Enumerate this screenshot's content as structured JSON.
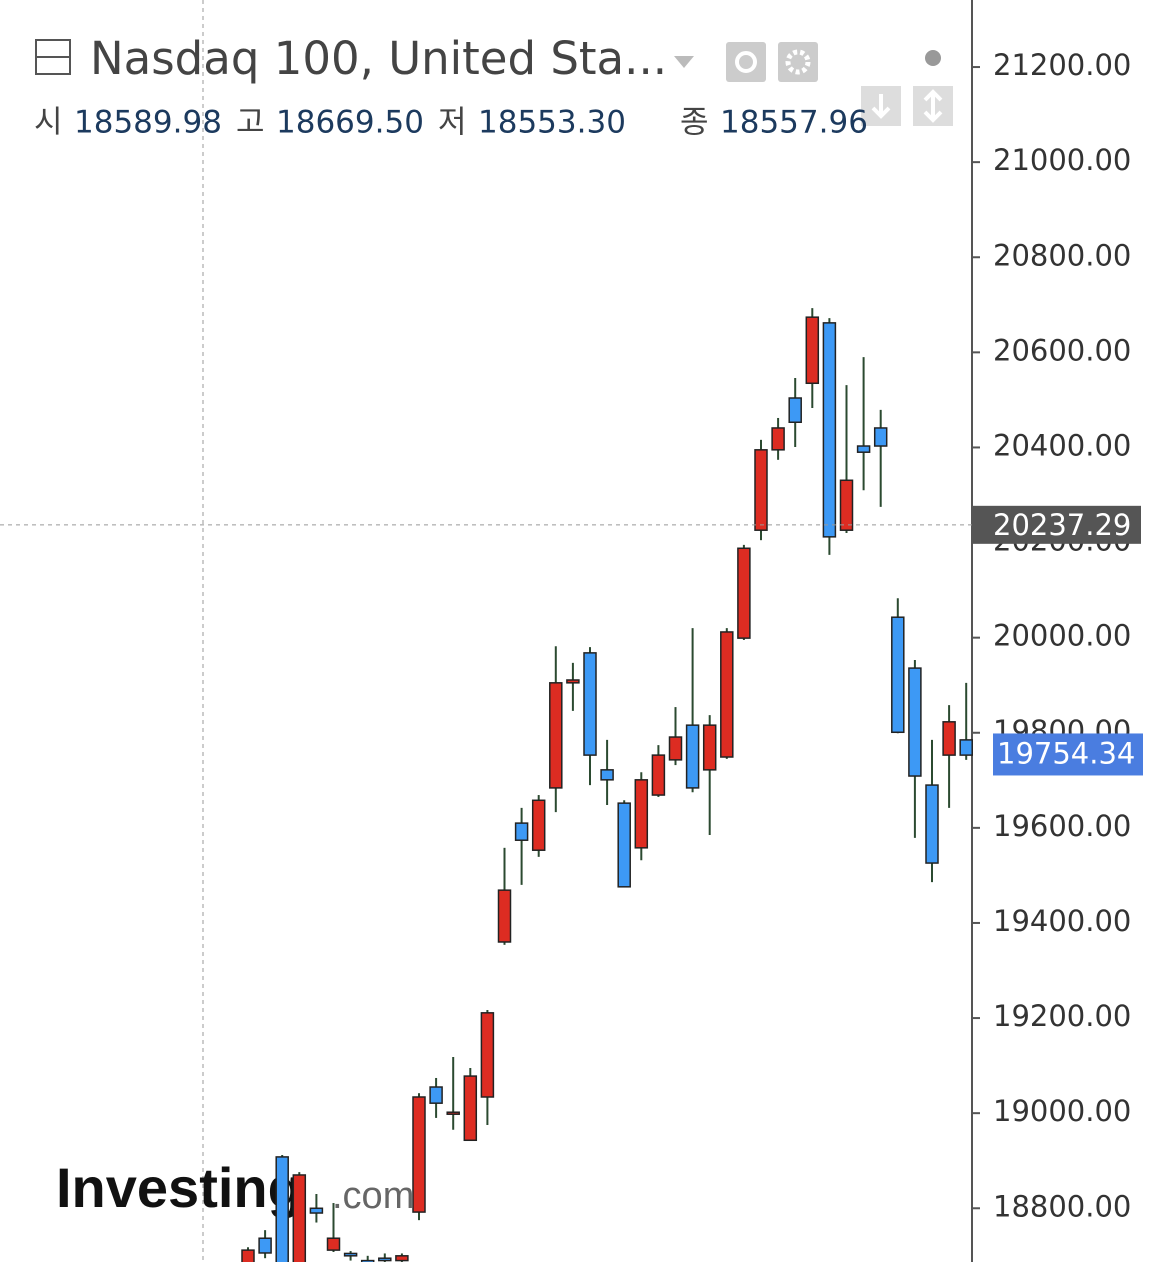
{
  "chart_data": {
    "type": "candlestick",
    "title": "Nasdaq 100, United Sta...",
    "ohlc_legend": [
      {
        "label": "시",
        "value": "18589.98"
      },
      {
        "label": "고",
        "value": "18669.50"
      },
      {
        "label": "저",
        "value": "18553.30"
      },
      {
        "label": "종",
        "value": "18557.96"
      }
    ],
    "watermark": {
      "brand": "Investing",
      "suffix": ".com"
    },
    "categories": [
      null,
      null,
      null,
      null,
      null,
      null,
      null,
      null,
      null,
      null,
      null,
      null,
      null,
      null,
      null,
      null,
      null,
      null,
      null,
      null,
      null,
      null,
      null,
      null,
      null,
      null,
      null,
      null,
      null,
      null,
      null,
      null,
      null,
      null,
      null,
      null,
      null,
      null,
      null,
      null,
      null,
      null,
      null
    ],
    "open": [
      18681,
      18737,
      18908,
      18680,
      18800,
      18712,
      18705,
      18690,
      18695,
      18690,
      18792,
      19055,
      19000,
      18943,
      19034,
      19360,
      19610,
      19553,
      19684,
      19905,
      19968,
      19722,
      19652,
      19558,
      19669,
      19743,
      19816,
      19722,
      19749,
      19999,
      20226,
      20395,
      20504,
      20535,
      20662,
      20226,
      20403,
      20441,
      20043,
      19936,
      19690,
      19753,
      19785
    ],
    "high": [
      18718,
      18754,
      18912,
      18876,
      18830,
      18811,
      18710,
      18700,
      18705,
      18705,
      19042,
      19074,
      19118,
      19095,
      19217,
      19558,
      19642,
      19669,
      19982,
      19947,
      19980,
      19785,
      19658,
      19717,
      19774,
      19854,
      20020,
      19837,
      20020,
      20195,
      20416,
      20462,
      20546,
      20693,
      20672,
      20531,
      20590,
      20479,
      20083,
      19953,
      19785,
      19858,
      19905
    ],
    "low": [
      18670,
      18695,
      18670,
      18675,
      18770,
      18708,
      18690,
      18670,
      18670,
      18675,
      18775,
      18990,
      18965,
      18943,
      18975,
      19354,
      19480,
      19539,
      19633,
      19846,
      19690,
      19648,
      19476,
      19532,
      19665,
      19732,
      19675,
      19585,
      19745,
      19995,
      20205,
      20374,
      20401,
      20483,
      20174,
      20220,
      20310,
      20275,
      19799,
      19579,
      19486,
      19642,
      19743
    ],
    "close": [
      18712,
      18706,
      18680,
      18870,
      18790,
      18737,
      18700,
      18680,
      18690,
      18700,
      19034,
      19021,
      19002,
      19078,
      19211,
      19469,
      19574,
      19658,
      19905,
      19911,
      19753,
      19701,
      19476,
      19701,
      19753,
      19791,
      19684,
      19816,
      20012,
      20188,
      20395,
      20441,
      20453,
      20674,
      20212,
      20331,
      20390,
      20403,
      19801,
      19709,
      19526,
      19823,
      19753
    ],
    "up_color": "#dd2c22",
    "down_color": "#3d99f5",
    "ylim": [
      18687,
      21341
    ],
    "yticks": [
      {
        "value": 18800,
        "label": "18800.00"
      },
      {
        "value": 19000,
        "label": "19000.00"
      },
      {
        "value": 19200,
        "label": "19200.00"
      },
      {
        "value": 19400,
        "label": "19400.00"
      },
      {
        "value": 19600,
        "label": "19600.00"
      },
      {
        "value": 19800,
        "label": "19800.00"
      },
      {
        "value": 20000,
        "label": "20000.00"
      },
      {
        "value": 20200,
        "label": "20200.00"
      },
      {
        "value": 20400,
        "label": "20400.00"
      },
      {
        "value": 20600,
        "label": "20600.00"
      },
      {
        "value": 20800,
        "label": "20800.00"
      },
      {
        "value": 21000,
        "label": "21000.00"
      },
      {
        "value": 21200,
        "label": "21200.00"
      }
    ],
    "crosshair_price": 20237.29,
    "last_price": 19754.34
  }
}
